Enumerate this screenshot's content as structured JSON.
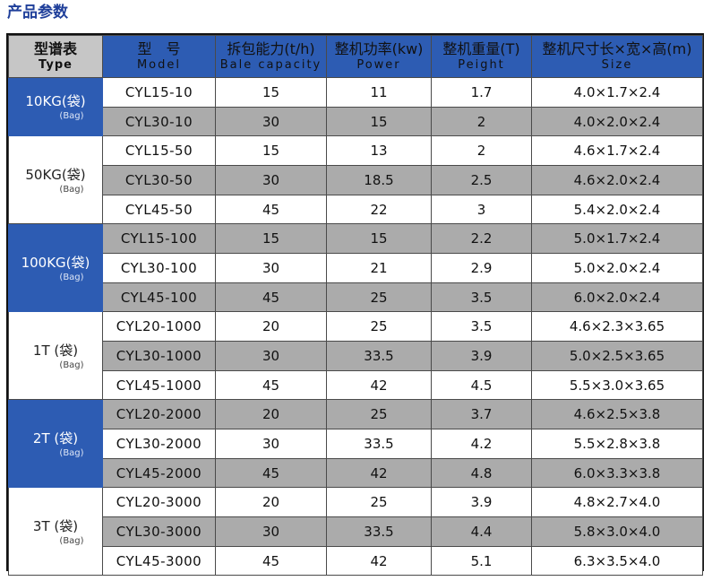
{
  "title": "产品参数",
  "header": {
    "type_zh": "型谱表",
    "type_en": "Type",
    "model_zh": "型　号",
    "model_en": "Model",
    "capacity_zh": "拆包能力(t/h)",
    "capacity_en": "Bale capacity",
    "power_zh": "整机功率(kw)",
    "power_en": "Power",
    "weight_zh": "整机重量(T)",
    "weight_en": "Peight",
    "size_zh": "整机尺寸长×宽×高(m)",
    "size_en": "Size"
  },
  "groups": [
    {
      "label": "10KG(袋)",
      "sub": "(Bag)",
      "rows": [
        {
          "model": "CYL15-10",
          "capacity": "15",
          "power": "11",
          "weight": "1.7",
          "size": "4.0×1.7×2.4"
        },
        {
          "model": "CYL30-10",
          "capacity": "30",
          "power": "15",
          "weight": "2",
          "size": "4.0×2.0×2.4"
        }
      ]
    },
    {
      "label": "50KG(袋)",
      "sub": "(Bag)",
      "rows": [
        {
          "model": "CYL15-50",
          "capacity": "15",
          "power": "13",
          "weight": "2",
          "size": "4.6×1.7×2.4"
        },
        {
          "model": "CYL30-50",
          "capacity": "30",
          "power": "18.5",
          "weight": "2.5",
          "size": "4.6×2.0×2.4"
        },
        {
          "model": "CYL45-50",
          "capacity": "45",
          "power": "22",
          "weight": "3",
          "size": "5.4×2.0×2.4"
        }
      ]
    },
    {
      "label": "100KG(袋)",
      "sub": "(Bag)",
      "rows": [
        {
          "model": "CYL15-100",
          "capacity": "15",
          "power": "15",
          "weight": "2.2",
          "size": "5.0×1.7×2.4"
        },
        {
          "model": "CYL30-100",
          "capacity": "30",
          "power": "21",
          "weight": "2.9",
          "size": "5.0×2.0×2.4"
        },
        {
          "model": "CYL45-100",
          "capacity": "45",
          "power": "25",
          "weight": "3.5",
          "size": "6.0×2.0×2.4"
        }
      ]
    },
    {
      "label": "1T (袋)",
      "sub": "(Bag)",
      "rows": [
        {
          "model": "CYL20-1000",
          "capacity": "20",
          "power": "25",
          "weight": "3.5",
          "size": "4.6×2.3×3.65"
        },
        {
          "model": "CYL30-1000",
          "capacity": "30",
          "power": "33.5",
          "weight": "3.9",
          "size": "5.0×2.5×3.65"
        },
        {
          "model": "CYL45-1000",
          "capacity": "45",
          "power": "42",
          "weight": "4.5",
          "size": "5.5×3.0×3.65"
        }
      ]
    },
    {
      "label": "2T (袋)",
      "sub": "(Bag)",
      "rows": [
        {
          "model": "CYL20-2000",
          "capacity": "20",
          "power": "25",
          "weight": "3.7",
          "size": "4.6×2.5×3.8"
        },
        {
          "model": "CYL30-2000",
          "capacity": "30",
          "power": "33.5",
          "weight": "4.2",
          "size": "5.5×2.8×3.8"
        },
        {
          "model": "CYL45-2000",
          "capacity": "45",
          "power": "42",
          "weight": "4.8",
          "size": "6.0×3.3×3.8"
        }
      ]
    },
    {
      "label": "3T (袋)",
      "sub": "(Bag)",
      "rows": [
        {
          "model": "CYL20-3000",
          "capacity": "20",
          "power": "25",
          "weight": "3.9",
          "size": "4.8×2.7×4.0"
        },
        {
          "model": "CYL30-3000",
          "capacity": "30",
          "power": "33.5",
          "weight": "4.4",
          "size": "5.8×3.0×4.0"
        },
        {
          "model": "CYL45-3000",
          "capacity": "45",
          "power": "42",
          "weight": "5.1",
          "size": "6.3×3.5×4.0"
        }
      ]
    }
  ],
  "colors": {
    "title": "#1f3f9a",
    "header_blue": "#2d5cb3",
    "header_gray": "#c6c6c6",
    "row_gray": "#ababab",
    "row_white": "#ffffff",
    "border": "#111111"
  }
}
